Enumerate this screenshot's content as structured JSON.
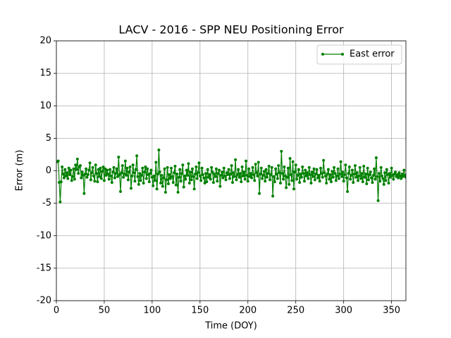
{
  "chart_data": {
    "type": "line",
    "title": "LACV - 2016 - SPP NEU Positioning Error",
    "xlabel": "Time (DOY)",
    "ylabel": "Error (m)",
    "xlim": [
      0,
      365
    ],
    "ylim": [
      -20,
      20
    ],
    "xticks": [
      0,
      50,
      100,
      150,
      200,
      250,
      300,
      350
    ],
    "yticks": [
      -20,
      -15,
      -10,
      -5,
      0,
      5,
      10,
      15,
      20
    ],
    "grid": true,
    "legend": "upper right",
    "x": [
      1,
      2,
      3,
      4,
      5,
      6,
      7,
      8,
      9,
      10,
      11,
      12,
      13,
      14,
      15,
      16,
      17,
      18,
      19,
      20,
      21,
      22,
      23,
      24,
      25,
      26,
      27,
      28,
      29,
      30,
      31,
      32,
      33,
      34,
      35,
      36,
      37,
      38,
      39,
      40,
      41,
      42,
      43,
      44,
      45,
      46,
      47,
      48,
      49,
      50,
      51,
      52,
      53,
      54,
      55,
      56,
      57,
      58,
      59,
      60,
      61,
      62,
      63,
      64,
      65,
      66,
      67,
      68,
      69,
      70,
      71,
      72,
      73,
      74,
      75,
      76,
      77,
      78,
      79,
      80,
      81,
      82,
      83,
      84,
      85,
      86,
      87,
      88,
      89,
      90,
      91,
      92,
      93,
      94,
      95,
      96,
      97,
      98,
      99,
      100,
      101,
      102,
      103,
      104,
      105,
      106,
      107,
      108,
      109,
      110,
      111,
      112,
      113,
      114,
      115,
      116,
      117,
      118,
      119,
      120,
      121,
      122,
      123,
      124,
      125,
      126,
      127,
      128,
      129,
      130,
      131,
      132,
      133,
      134,
      135,
      136,
      137,
      138,
      139,
      140,
      141,
      142,
      143,
      144,
      145,
      146,
      147,
      148,
      149,
      150,
      151,
      152,
      153,
      154,
      155,
      156,
      157,
      158,
      159,
      160,
      161,
      162,
      163,
      164,
      165,
      166,
      167,
      168,
      169,
      170,
      171,
      172,
      173,
      174,
      175,
      176,
      177,
      178,
      179,
      180,
      181,
      182,
      183,
      184,
      185,
      186,
      187,
      188,
      189,
      190,
      191,
      192,
      193,
      194,
      195,
      196,
      197,
      198,
      199,
      200,
      201,
      202,
      203,
      204,
      205,
      206,
      207,
      208,
      209,
      210,
      211,
      212,
      213,
      214,
      215,
      216,
      217,
      218,
      219,
      220,
      221,
      222,
      223,
      224,
      225,
      226,
      227,
      228,
      229,
      230,
      231,
      232,
      233,
      234,
      235,
      236,
      237,
      238,
      239,
      240,
      241,
      242,
      243,
      244,
      245,
      246,
      247,
      248,
      249,
      250,
      251,
      252,
      253,
      254,
      255,
      256,
      257,
      258,
      259,
      260,
      261,
      262,
      263,
      264,
      265,
      266,
      267,
      268,
      269,
      270,
      271,
      272,
      273,
      274,
      275,
      276,
      277,
      278,
      279,
      280,
      281,
      282,
      283,
      284,
      285,
      286,
      287,
      288,
      289,
      290,
      291,
      292,
      293,
      294,
      295,
      296,
      297,
      298,
      299,
      300,
      301,
      302,
      303,
      304,
      305,
      306,
      307,
      308,
      309,
      310,
      311,
      312,
      313,
      314,
      315,
      316,
      317,
      318,
      319,
      320,
      321,
      322,
      323,
      324,
      325,
      326,
      327,
      328,
      329,
      330,
      331,
      332,
      333,
      334,
      335,
      336,
      337,
      338,
      339,
      340,
      341,
      342,
      343,
      344,
      345,
      346,
      347,
      348,
      349,
      350,
      351,
      352,
      353,
      354,
      355,
      356,
      357,
      358,
      359,
      360,
      361,
      362,
      363,
      364,
      365
    ],
    "series": [
      {
        "name": "East error",
        "color": "#008000",
        "values": [
          1.4,
          1.5,
          -1.8,
          -4.8,
          -1.7,
          0.6,
          -0.5,
          -1.1,
          0.2,
          -0.8,
          -0.3,
          -1.2,
          0.4,
          -0.6,
          0.1,
          -1.5,
          -0.9,
          0.3,
          -1.3,
          0.9,
          0.2,
          1.8,
          -0.4,
          0.6,
          0.8,
          -1.1,
          -0.2,
          -0.7,
          -3.5,
          -0.5,
          0.3,
          -1.0,
          -0.6,
          0.1,
          1.2,
          -1.4,
          -0.3,
          0.5,
          -0.8,
          -1.6,
          0.9,
          -0.4,
          -1.7,
          0.2,
          -0.9,
          0.4,
          -1.2,
          -0.1,
          0.6,
          -1.5,
          0.3,
          -0.7,
          0.1,
          -0.5,
          -1.3,
          0.2,
          -0.8,
          -1.8,
          -0.2,
          0.5,
          -1.1,
          -0.4,
          0.3,
          -0.9,
          2.1,
          -0.6,
          -3.2,
          -0.3,
          0.8,
          -1.0,
          -0.5,
          1.5,
          -0.7,
          0.4,
          -1.4,
          -0.2,
          0.6,
          -2.7,
          -0.8,
          0.9,
          -0.3,
          -1.6,
          0.2,
          2.3,
          -0.9,
          -2.1,
          -0.4,
          -1.5,
          -0.7,
          0.4,
          -1.9,
          -0.2,
          0.6,
          -1.2,
          0.3,
          -0.6,
          -1.7,
          -0.4,
          0.1,
          -1.0,
          -2.3,
          -0.8,
          -1.5,
          1.3,
          -2.8,
          -0.5,
          3.2,
          -0.2,
          -1.9,
          -0.7,
          -2.4,
          -1.1,
          0.3,
          -3.3,
          -1.4,
          0.5,
          -2.0,
          -0.6,
          -1.2,
          0.4,
          -0.9,
          -1.8,
          -0.3,
          0.7,
          -2.2,
          -0.5,
          -3.3,
          -1.0,
          0.2,
          -1.6,
          -0.4,
          0.9,
          -2.5,
          -0.8,
          -1.3,
          0.1,
          -0.7,
          1.1,
          -1.9,
          -0.2,
          -1.4,
          0.3,
          -0.9,
          -2.8,
          -0.5,
          0.6,
          -1.2,
          -0.3,
          1.2,
          -0.8,
          -1.5,
          0.4,
          -0.6,
          -1.1,
          -1.9,
          -0.4,
          -1.7,
          0.2,
          -1.0,
          -0.6,
          -1.3,
          0.5,
          -0.2,
          -1.8,
          -0.5,
          -0.9,
          0.3,
          -1.6,
          -0.4,
          0.1,
          -2.4,
          -0.7,
          -0.2,
          -1.1,
          0.4,
          -0.8,
          -1.4,
          -0.3,
          -0.6,
          0.2,
          -1.2,
          -0.5,
          0.8,
          -1.8,
          -0.3,
          -0.9,
          1.7,
          -1.4,
          -0.6,
          0.2,
          -1.0,
          -0.4,
          -1.7,
          0.6,
          -0.8,
          -0.2,
          -1.3,
          1.5,
          -0.7,
          -1.6,
          0.3,
          -0.9,
          -0.4,
          -1.1,
          0.5,
          -0.6,
          -1.5,
          1.0,
          -0.3,
          -0.8,
          1.3,
          -3.5,
          -0.5,
          0.4,
          -1.2,
          -0.7,
          -0.1,
          -1.6,
          0.2,
          -1.0,
          -0.4,
          0.7,
          -1.4,
          -0.6,
          0.5,
          -3.9,
          -0.9,
          -1.7,
          0.3,
          -0.5,
          -1.2,
          0.8,
          -0.3,
          -1.9,
          3.0,
          -0.4,
          -1.3,
          0.6,
          -0.8,
          -2.6,
          -1.0,
          0.4,
          -2.1,
          1.9,
          -0.6,
          -1.5,
          1.4,
          -2.8,
          -0.2,
          0.9,
          -1.3,
          -0.7,
          0.2,
          -1.8,
          -0.5,
          -1.0,
          0.6,
          -0.4,
          -1.6,
          0.1,
          -0.8,
          -0.3,
          -1.2,
          0.5,
          -0.6,
          -1.9,
          -0.2,
          -0.9,
          0.3,
          -1.4,
          -0.5,
          0.2,
          -1.1,
          -0.7,
          -1.6,
          0.4,
          -0.4,
          -1.0,
          1.6,
          -0.3,
          -0.8,
          -1.9,
          -0.5,
          0.2,
          -1.3,
          -0.6,
          -1.7,
          -0.1,
          -1.0,
          0.5,
          -0.4,
          -1.5,
          -0.8,
          0.3,
          -1.2,
          -0.5,
          1.4,
          -0.9,
          -0.2,
          -1.6,
          -0.6,
          0.9,
          -1.1,
          -3.2,
          -0.4,
          0.6,
          -1.3,
          -0.7,
          0.1,
          -1.8,
          -0.5,
          0.8,
          -1.0,
          -0.3,
          -1.5,
          -0.8,
          0.5,
          -1.2,
          -0.4,
          -1.7,
          0.7,
          -1.0,
          -0.5,
          -2.0,
          0.4,
          -1.4,
          -0.6,
          -0.2,
          -1.1,
          -1.8,
          -0.7,
          0.3,
          -1.3,
          2.0,
          -0.9,
          -4.6,
          -0.4,
          -1.6,
          0.5,
          -0.8,
          -1.2,
          -2.1,
          -0.3,
          -1.5,
          0.2,
          -0.6,
          -1.9,
          -0.4,
          -1.0,
          0.4,
          -0.7,
          -1.3,
          -0.5,
          -0.2,
          -0.9,
          -0.6,
          -1.1,
          -0.3,
          -0.8,
          -1.2,
          -0.5,
          -0.9,
          0.1,
          -0.7,
          -1.0
        ]
      }
    ]
  }
}
